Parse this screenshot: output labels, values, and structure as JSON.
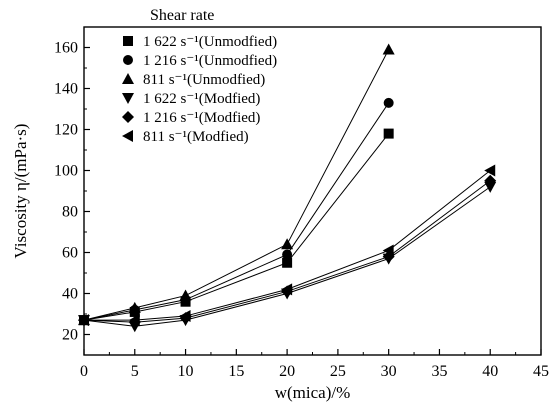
{
  "chart_data": {
    "type": "line",
    "xlabel": "w(mica)/%",
    "ylabel": "Viscosity  η/(mPa·s)",
    "xlim": [
      0,
      45
    ],
    "ylim": [
      10,
      170
    ],
    "xticks": [
      0,
      5,
      10,
      15,
      20,
      25,
      30,
      35,
      40,
      45
    ],
    "yticks": [
      20,
      40,
      60,
      80,
      100,
      120,
      140,
      160
    ],
    "grid": false,
    "legend": {
      "title": "Shear rate",
      "placement": "top-left"
    },
    "series": [
      {
        "name": "1 622  s⁻¹(Unmodfied)",
        "marker": "square",
        "x": [
          0,
          5,
          10,
          20,
          30
        ],
        "y": [
          27,
          31,
          36,
          55,
          118
        ]
      },
      {
        "name": "1 216  s⁻¹(Unmodfied)",
        "marker": "circle",
        "x": [
          0,
          5,
          10,
          20,
          30
        ],
        "y": [
          27,
          32,
          37,
          59,
          133
        ]
      },
      {
        "name": "811  s⁻¹(Unmodfied)",
        "marker": "triangle-up",
        "x": [
          0,
          5,
          10,
          20,
          30
        ],
        "y": [
          27,
          33,
          39,
          64,
          159
        ]
      },
      {
        "name": "1 622  s⁻¹(Modfied)",
        "marker": "triangle-down",
        "x": [
          0,
          5,
          10,
          20,
          30,
          40
        ],
        "y": [
          27,
          24,
          27,
          40,
          57,
          92
        ]
      },
      {
        "name": "1 216  s⁻¹(Modfied)",
        "marker": "diamond",
        "x": [
          0,
          5,
          10,
          20,
          30,
          40
        ],
        "y": [
          27,
          26,
          28,
          41,
          58,
          95
        ]
      },
      {
        "name": "811  s⁻¹(Modfied)",
        "marker": "triangle-left",
        "x": [
          0,
          5,
          10,
          20,
          30,
          40
        ],
        "y": [
          27,
          27,
          29,
          42,
          61,
          100
        ]
      }
    ]
  }
}
